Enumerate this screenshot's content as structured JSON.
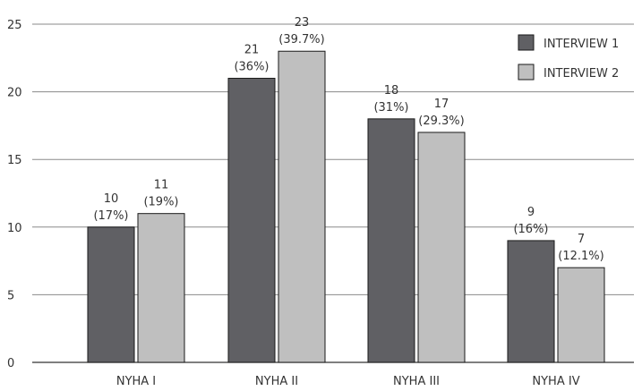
{
  "chart_data": {
    "type": "bar",
    "categories": [
      "NYHA I",
      "NYHA II",
      "NYHA III",
      "NYHA IV"
    ],
    "series": [
      {
        "name": "INTERVIEW 1",
        "color": "#606064",
        "values": [
          10,
          21,
          18,
          9
        ],
        "labels": [
          [
            "10",
            "(17%)"
          ],
          [
            "21",
            "(36%)"
          ],
          [
            "18",
            "(31%)"
          ],
          [
            "9",
            "(16%)"
          ]
        ]
      },
      {
        "name": "INTERVIEW 2",
        "color": "#bfbfbf",
        "values": [
          11,
          23,
          17,
          7
        ],
        "labels": [
          [
            "11",
            "(19%)"
          ],
          [
            "23",
            "(39.7%)"
          ],
          [
            "17",
            "(29.3%)"
          ],
          [
            "7",
            "(12.1%)"
          ]
        ]
      }
    ],
    "yticks": [
      "0",
      "5",
      "10",
      "15",
      "20",
      "25"
    ],
    "ylim": [
      0,
      25
    ],
    "title": "",
    "xlabel": "",
    "ylabel": "",
    "grid": true,
    "legend_position": "top-right"
  }
}
